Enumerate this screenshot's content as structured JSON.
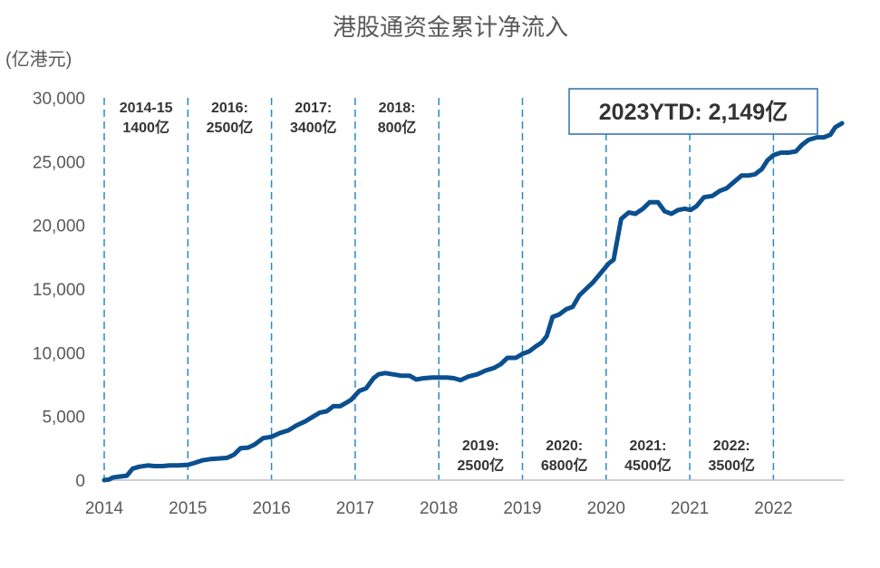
{
  "chart_data": {
    "type": "line",
    "title": "港股通资金累计净流入",
    "ylabel": "(亿港元)",
    "xlabel": "",
    "xlim": [
      2014,
      2022.85
    ],
    "ylim": [
      0,
      30000
    ],
    "yticks": [
      "0",
      "5,000",
      "10,000",
      "15,000",
      "20,000",
      "25,000",
      "30,000"
    ],
    "ytick_values": [
      0,
      5000,
      10000,
      15000,
      20000,
      25000,
      30000
    ],
    "xticks": [
      "2014",
      "2015",
      "2016",
      "2017",
      "2018",
      "2019",
      "2020",
      "2021",
      "2022"
    ],
    "xtick_values": [
      2014,
      2015,
      2016,
      2017,
      2018,
      2019,
      2020,
      2021,
      2022
    ],
    "grid": false,
    "legend": "none",
    "line_color": "#0b4f8f",
    "divider_color": "#2a8abf",
    "dividers": [
      2014,
      2015,
      2016,
      2017,
      2018,
      2019,
      2020,
      2021,
      2022
    ],
    "annotations_top": [
      {
        "x": 2014.5,
        "lines": [
          "2014-15",
          "1400亿"
        ]
      },
      {
        "x": 2015.5,
        "lines": [
          "2016:",
          "2500亿"
        ]
      },
      {
        "x": 2016.5,
        "lines": [
          "2017:",
          "3400亿"
        ]
      },
      {
        "x": 2017.5,
        "lines": [
          "2018:",
          "800亿"
        ]
      }
    ],
    "annotations_bottom": [
      {
        "x": 2018.5,
        "lines": [
          "2019:",
          "2500亿"
        ]
      },
      {
        "x": 2019.5,
        "lines": [
          "2020:",
          "6800亿"
        ]
      },
      {
        "x": 2020.5,
        "lines": [
          "2021:",
          "4500亿"
        ]
      },
      {
        "x": 2021.5,
        "lines": [
          "2022:",
          "3500亿"
        ]
      }
    ],
    "callout": "2023YTD: 2,149亿",
    "series": [
      {
        "x": [
          2014.0,
          2014.06,
          2014.1,
          2014.18,
          2014.27,
          2014.34,
          2014.42,
          2014.52,
          2014.6,
          2014.7,
          2014.78,
          2014.88,
          2015.0,
          2015.08,
          2015.17,
          2015.27,
          2015.37,
          2015.47,
          2015.55,
          2015.63,
          2015.72,
          2015.8,
          2015.9,
          2016.0,
          2016.1,
          2016.2,
          2016.3,
          2016.4,
          2016.5,
          2016.58,
          2016.66,
          2016.74,
          2016.82,
          2016.9,
          2016.95,
          2017.05,
          2017.13,
          2017.22,
          2017.28,
          2017.36,
          2017.45,
          2017.55,
          2017.65,
          2017.73,
          2017.82,
          2017.92,
          2018.0,
          2018.1,
          2018.18,
          2018.26,
          2018.36,
          2018.46,
          2018.56,
          2018.66,
          2018.74,
          2018.82,
          2018.92,
          2019.0,
          2019.08,
          2019.16,
          2019.23,
          2019.29,
          2019.36,
          2019.44,
          2019.52,
          2019.6,
          2019.68,
          2019.76,
          2019.84,
          2019.93,
          2020.03,
          2020.09,
          2020.18,
          2020.27,
          2020.35,
          2020.44,
          2020.52,
          2020.62,
          2020.7,
          2020.78,
          2020.86,
          2020.94,
          2021.01,
          2021.08,
          2021.17,
          2021.27,
          2021.36,
          2021.44,
          2021.53,
          2021.62,
          2021.7,
          2021.78,
          2021.86,
          2021.93,
          2022.0,
          2022.09,
          2022.18,
          2022.27,
          2022.34,
          2022.42,
          2022.52,
          2022.6,
          2022.68,
          2022.74,
          2022.82
        ],
        "y": [
          0,
          50,
          200,
          280,
          350,
          900,
          1050,
          1150,
          1100,
          1100,
          1150,
          1150,
          1200,
          1350,
          1550,
          1650,
          1700,
          1750,
          2000,
          2500,
          2550,
          2800,
          3300,
          3400,
          3700,
          3900,
          4300,
          4600,
          5000,
          5300,
          5400,
          5800,
          5800,
          6100,
          6300,
          7000,
          7200,
          8000,
          8300,
          8400,
          8300,
          8200,
          8200,
          7900,
          8000,
          8050,
          8050,
          8050,
          8000,
          7850,
          8150,
          8300,
          8600,
          8800,
          9100,
          9600,
          9600,
          9900,
          10100,
          10500,
          10800,
          11300,
          12800,
          13000,
          13400,
          13600,
          14500,
          15000,
          15500,
          16200,
          17000,
          17300,
          20500,
          21000,
          20900,
          21300,
          21800,
          21800,
          21100,
          20900,
          21200,
          21300,
          21200,
          21500,
          22200,
          22300,
          22700,
          22900,
          23400,
          23900,
          23900,
          24000,
          24400,
          25100,
          25500,
          25700,
          25700,
          25800,
          26300,
          26700,
          26900,
          26900,
          27100,
          27700,
          28000
        ]
      }
    ]
  }
}
